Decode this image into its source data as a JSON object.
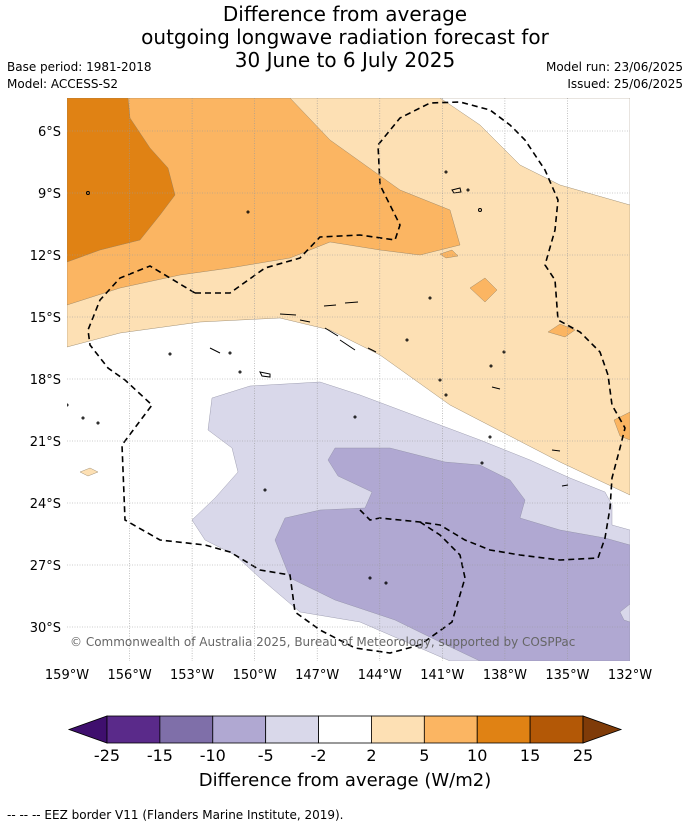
{
  "title": {
    "line1": "Difference from average",
    "line2": "outgoing longwave radiation forecast for",
    "line3": "30 June to 6 July 2025"
  },
  "meta": {
    "base_period": "Base period: 1981-2018",
    "model": "Model: ACCESS-S2",
    "model_run": "Model run: 23/06/2025",
    "issued": "Issued: 25/06/2025"
  },
  "map": {
    "lat_ticks": [
      "6°S",
      "9°S",
      "12°S",
      "15°S",
      "18°S",
      "21°S",
      "24°S",
      "27°S",
      "30°S"
    ],
    "lon_ticks": [
      "159°W",
      "156°W",
      "153°W",
      "150°W",
      "147°W",
      "144°W",
      "141°W",
      "138°W",
      "135°W",
      "132°W"
    ],
    "copyright": "© Commonwealth of Australia 2025, Bureau of Meteorology, supported by COSPPac"
  },
  "colorbar": {
    "ticks": [
      "-25",
      "-15",
      "-10",
      "-5",
      "-2",
      "2",
      "5",
      "10",
      "15",
      "25"
    ],
    "colors": [
      "#3f0f6e",
      "#5a2a8a",
      "#7f6fa9",
      "#b0a8d2",
      "#d9d8ea",
      "#ffffff",
      "#fde0b4",
      "#fbb562",
      "#e08214",
      "#b35806",
      "#7f3b08"
    ],
    "label": "Difference from average (W/m2)"
  },
  "footnote": "--  --  -- EEZ border V11 (Flanders Marine Institute, 2019)."
}
